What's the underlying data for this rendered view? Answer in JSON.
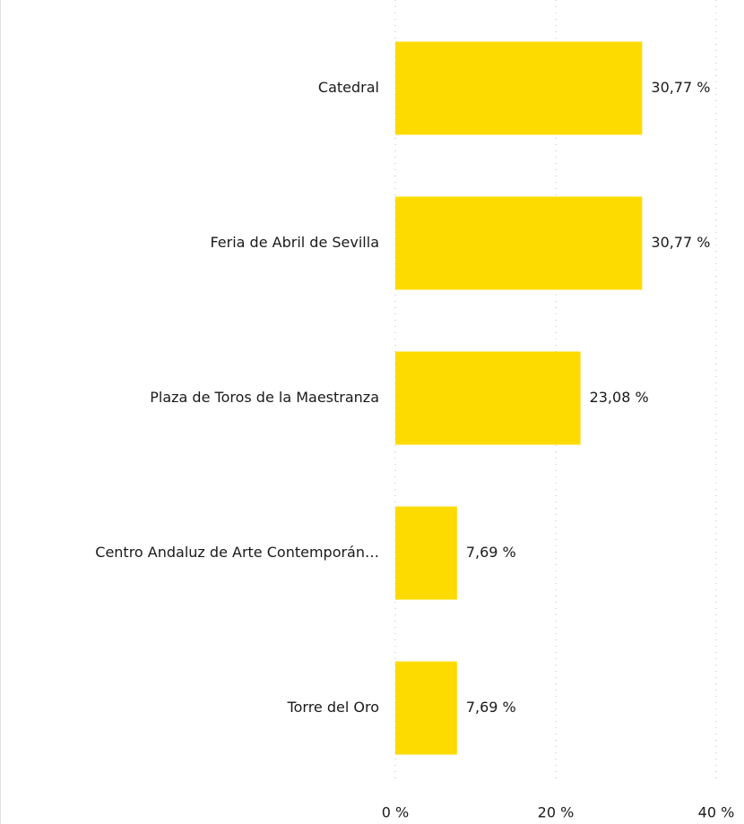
{
  "chart_data": {
    "type": "bar",
    "orientation": "horizontal",
    "categories": [
      "Catedral",
      "Feria de Abril de Sevilla",
      "Plaza de Toros de la Maestranza",
      "Centro Andaluz de Arte Contemporán…",
      "Torre del Oro"
    ],
    "values": [
      30.77,
      30.77,
      23.08,
      7.69,
      7.69
    ],
    "value_labels": [
      "30,77 %",
      "30,77 %",
      "23,08 %",
      "7,69 %",
      "7,69 %"
    ],
    "color": "#fedb00",
    "xlim": [
      0,
      40
    ],
    "xticks": [
      {
        "value": 0,
        "label": "0 %"
      },
      {
        "value": 20,
        "label": "20 %"
      },
      {
        "value": 40,
        "label": "40 %"
      }
    ],
    "grid": true
  }
}
